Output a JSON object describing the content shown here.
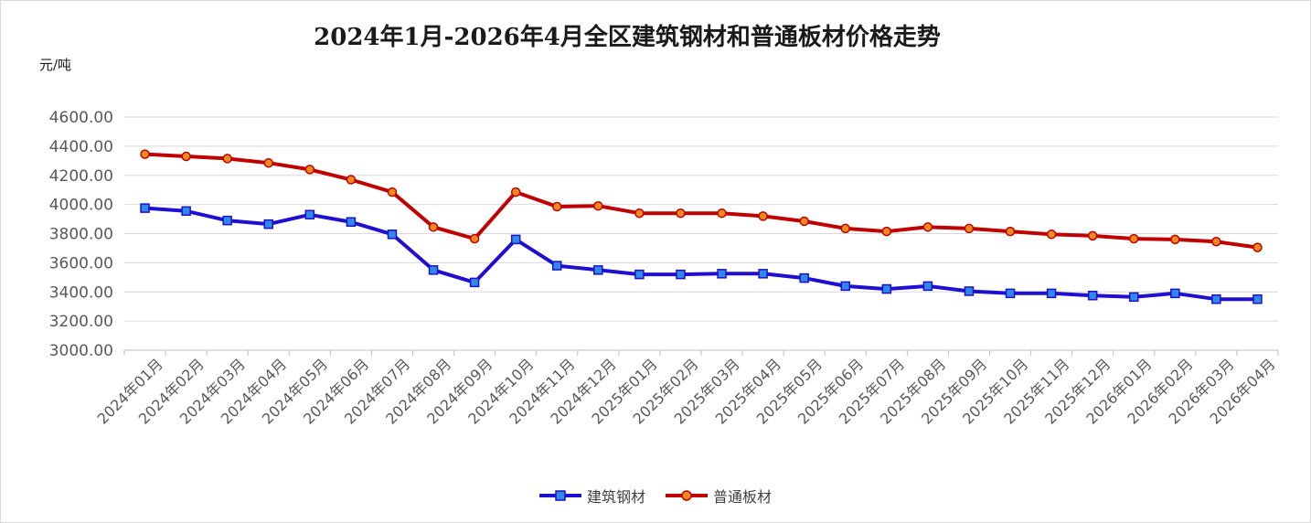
{
  "chart_data": {
    "type": "line",
    "title": "2024年1月-2026年4月全区建筑钢材和普通板材价格走势",
    "ylabel": "元/吨",
    "xlabel": "",
    "ylim": [
      3000,
      4600
    ],
    "yticks": [
      "3000.00",
      "3200.00",
      "3400.00",
      "3600.00",
      "3800.00",
      "4000.00",
      "4200.00",
      "4400.00",
      "4600.00"
    ],
    "categories": [
      "2024年01月",
      "2024年02月",
      "2024年03月",
      "2024年04月",
      "2024年05月",
      "2024年06月",
      "2024年07月",
      "2024年08月",
      "2024年09月",
      "2024年10月",
      "2024年11月",
      "2024年12月",
      "2025年01月",
      "2025年02月",
      "2025年03月",
      "2025年04月",
      "2025年05月",
      "2025年06月",
      "2025年07月",
      "2025年08月",
      "2025年09月",
      "2025年10月",
      "2025年11月",
      "2025年12月",
      "2026年01月",
      "2026年02月",
      "2026年03月",
      "2026年04月"
    ],
    "series": [
      {
        "name": "建筑钢材",
        "color": "#1f0fd0",
        "marker": "square",
        "values": [
          3975,
          3955,
          3890,
          3865,
          3930,
          3880,
          3795,
          3550,
          3465,
          3760,
          3580,
          3550,
          3520,
          3520,
          3525,
          3525,
          3495,
          3440,
          3420,
          3440,
          3405,
          3390,
          3390,
          3375,
          3365,
          3390,
          3350,
          3350
        ]
      },
      {
        "name": "普通板材",
        "color": "#c00000",
        "marker": "circle",
        "values": [
          4345,
          4330,
          4315,
          4285,
          4240,
          4170,
          4085,
          3845,
          3765,
          4085,
          3985,
          3990,
          3940,
          3940,
          3940,
          3920,
          3885,
          3835,
          3815,
          3845,
          3835,
          3815,
          3795,
          3785,
          3765,
          3760,
          3745,
          3705
        ]
      }
    ],
    "grid": "horizontal",
    "legend_position": "bottom"
  }
}
